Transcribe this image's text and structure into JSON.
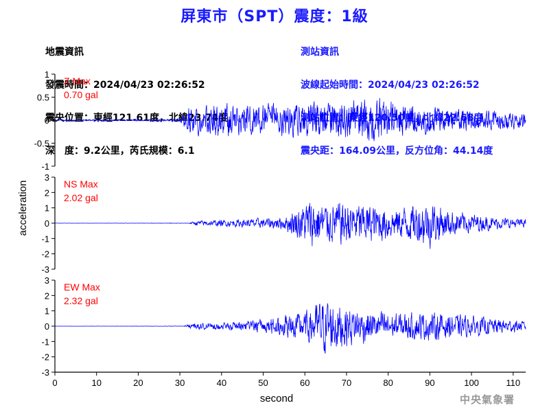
{
  "title": "屏東市（SPT）震度：1級",
  "quake_info": {
    "heading": "地震資訊",
    "time": "發震時間：2024/04/23 02:26:52",
    "epicenter": "震央位置：東經121.61度，北緯23.74度",
    "depth_mag": "深　度：9.2公里，芮氏規模：6.1"
  },
  "station_info": {
    "heading": "測站資訊",
    "wave_start": "波線起始時間：2024/04/23 02:26:52",
    "location": "測站位置：東經120.50度，北緯22.68度",
    "distance": "震央距：164.09公里，反方位角：44.14度"
  },
  "footer": "中央氣象署",
  "colors": {
    "title": "#1a1aff",
    "trace": "#0000ff",
    "max_label": "#ff0000",
    "axis": "#000000",
    "footer": "#999999"
  },
  "chart_data": [
    {
      "type": "line",
      "channel": "Z",
      "max_label": "Z Max",
      "max_value": "0.70 gal",
      "ylim": [
        -1,
        1
      ],
      "yticks": [
        "1",
        "0.5",
        "0",
        "-0.5",
        "-1"
      ],
      "ylabel": "acceleration",
      "xlim": [
        0,
        113
      ],
      "onset_s": 31,
      "envelope": [
        [
          0,
          0.01
        ],
        [
          30,
          0.02
        ],
        [
          31,
          0.15
        ],
        [
          32,
          0.35
        ],
        [
          40,
          0.45
        ],
        [
          50,
          0.4
        ],
        [
          60,
          0.45
        ],
        [
          70,
          0.5
        ],
        [
          76,
          0.6
        ],
        [
          85,
          0.42
        ],
        [
          95,
          0.3
        ],
        [
          105,
          0.25
        ],
        [
          113,
          0.2
        ]
      ]
    },
    {
      "type": "line",
      "channel": "NS",
      "max_label": "NS Max",
      "max_value": "2.02 gal",
      "ylim": [
        -3,
        3
      ],
      "yticks": [
        "3",
        "2",
        "1",
        "0",
        "-1",
        "-2",
        "-3"
      ],
      "xlim": [
        0,
        113
      ],
      "onset_s": 32,
      "envelope": [
        [
          0,
          0.005
        ],
        [
          32,
          0.01
        ],
        [
          34,
          0.2
        ],
        [
          45,
          0.3
        ],
        [
          55,
          0.5
        ],
        [
          58,
          1.2
        ],
        [
          62,
          2.0
        ],
        [
          66,
          1.5
        ],
        [
          70,
          1.8
        ],
        [
          76,
          1.5
        ],
        [
          82,
          1.2
        ],
        [
          90,
          1.9
        ],
        [
          95,
          1.0
        ],
        [
          105,
          0.5
        ],
        [
          113,
          0.3
        ]
      ]
    },
    {
      "type": "line",
      "channel": "EW",
      "max_label": "EW Max",
      "max_value": "2.32 gal",
      "ylim": [
        -3,
        3
      ],
      "yticks": [
        "3",
        "2",
        "1",
        "0",
        "-1",
        "-2",
        "-3"
      ],
      "xlabel": "second",
      "xlim": [
        0,
        113
      ],
      "xticks": [
        "0",
        "10",
        "20",
        "30",
        "40",
        "50",
        "60",
        "70",
        "80",
        "90",
        "100",
        "110"
      ],
      "onset_s": 31,
      "envelope": [
        [
          0,
          0.005
        ],
        [
          31,
          0.01
        ],
        [
          32,
          0.2
        ],
        [
          45,
          0.35
        ],
        [
          55,
          0.8
        ],
        [
          60,
          1.1
        ],
        [
          65,
          2.3
        ],
        [
          70,
          1.6
        ],
        [
          76,
          1.2
        ],
        [
          82,
          1.0
        ],
        [
          90,
          1.1
        ],
        [
          100,
          0.8
        ],
        [
          113,
          0.4
        ]
      ]
    }
  ]
}
